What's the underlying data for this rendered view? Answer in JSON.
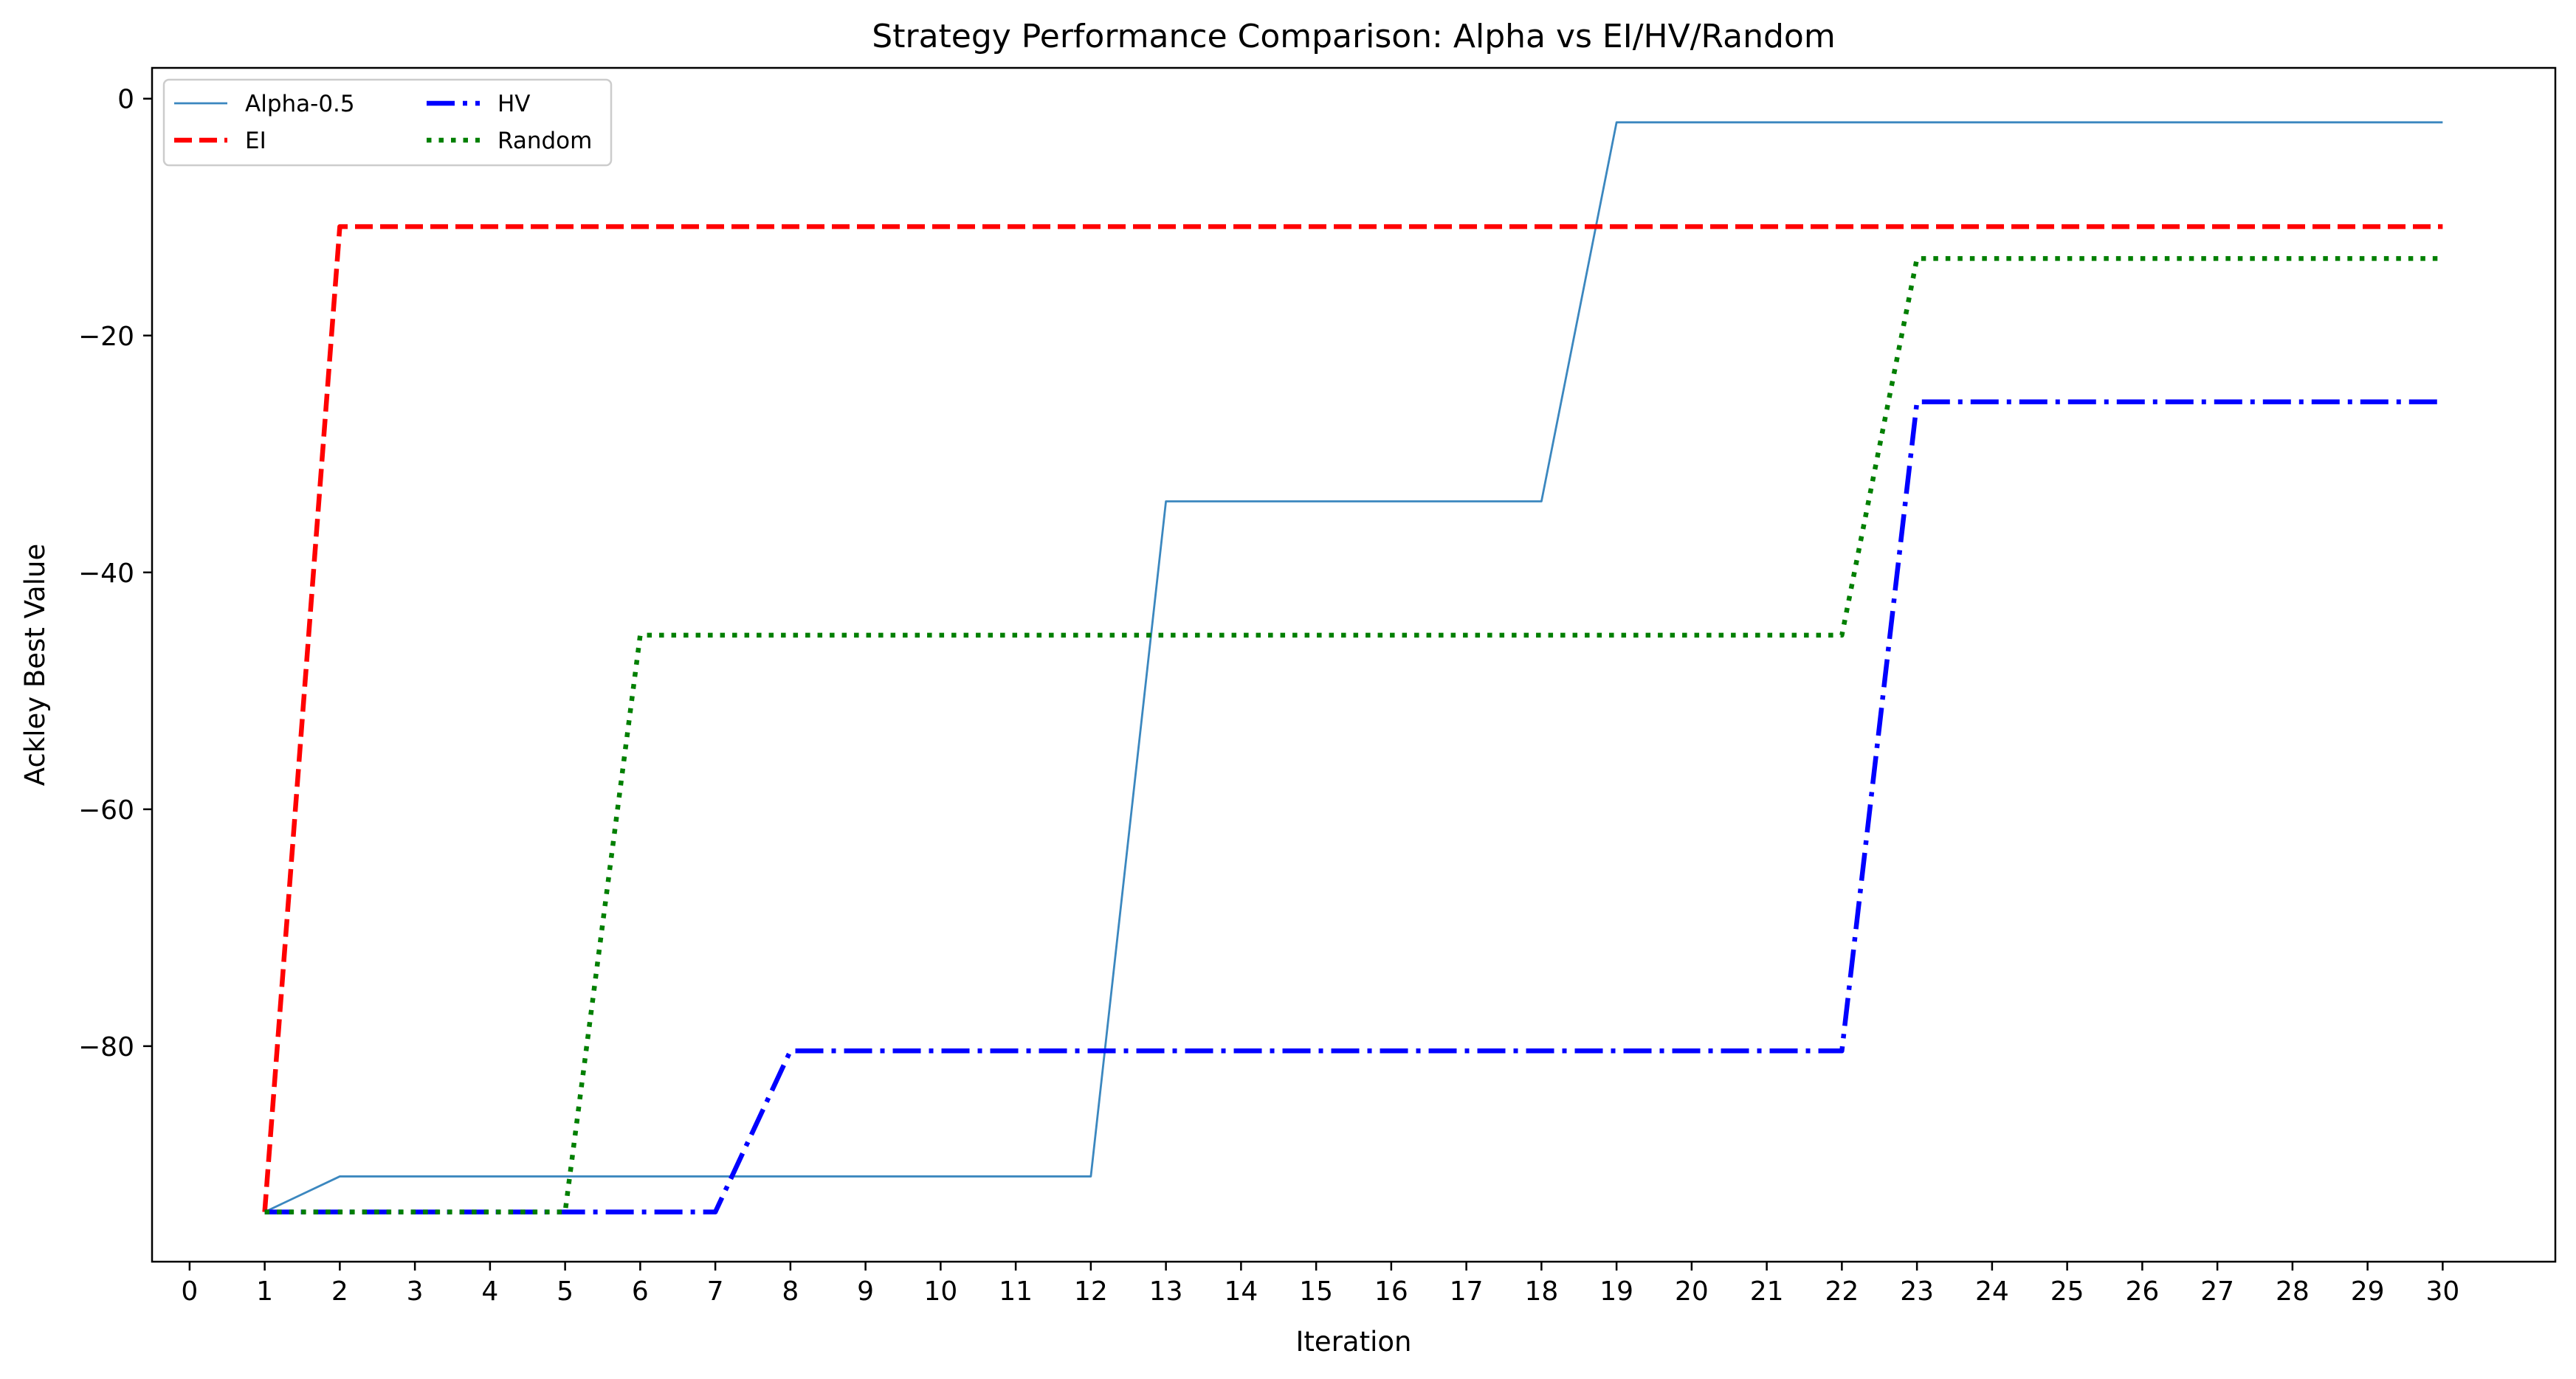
{
  "chart_data": {
    "type": "line",
    "title": "Strategy Performance Comparison: Alpha vs EI/HV/Random",
    "xlabel": "Iteration",
    "ylabel": "Ackley Best Value",
    "xlim": [
      -0.5,
      31.5
    ],
    "ylim": [
      -98.2,
      2.6
    ],
    "xticks": [
      0,
      1,
      2,
      3,
      4,
      5,
      6,
      7,
      8,
      9,
      10,
      11,
      12,
      13,
      14,
      15,
      16,
      17,
      18,
      19,
      20,
      21,
      22,
      23,
      24,
      25,
      26,
      27,
      28,
      29,
      30
    ],
    "yticks": [
      0,
      -20,
      -40,
      -60,
      -80
    ],
    "ytick_labels": [
      "0",
      "−20",
      "−40",
      "−60",
      "−80"
    ],
    "grid": false,
    "legend": {
      "placement": "upper-left",
      "columns": 2
    },
    "x": [
      1,
      2,
      3,
      4,
      5,
      6,
      7,
      8,
      9,
      10,
      11,
      12,
      13,
      14,
      15,
      16,
      17,
      18,
      19,
      20,
      21,
      22,
      23,
      24,
      25,
      26,
      27,
      28,
      29,
      30
    ],
    "series": [
      {
        "name": "Alpha-0.5",
        "color": "#3b87bf",
        "style": "solid",
        "values": [
          -94.0,
          -91.0,
          -91.0,
          -91.0,
          -91.0,
          -91.0,
          -91.0,
          -91.0,
          -91.0,
          -91.0,
          -91.0,
          -91.0,
          -34.0,
          -34.0,
          -34.0,
          -34.0,
          -34.0,
          -34.0,
          -2.0,
          -2.0,
          -2.0,
          -2.0,
          -2.0,
          -2.0,
          -2.0,
          -2.0,
          -2.0,
          -2.0,
          -2.0,
          -2.0
        ]
      },
      {
        "name": "EI",
        "color": "#ff0000",
        "style": "dashed",
        "values": [
          -94.0,
          -10.8,
          -10.8,
          -10.8,
          -10.8,
          -10.8,
          -10.8,
          -10.8,
          -10.8,
          -10.8,
          -10.8,
          -10.8,
          -10.8,
          -10.8,
          -10.8,
          -10.8,
          -10.8,
          -10.8,
          -10.8,
          -10.8,
          -10.8,
          -10.8,
          -10.8,
          -10.8,
          -10.8,
          -10.8,
          -10.8,
          -10.8,
          -10.8,
          -10.8
        ]
      },
      {
        "name": "HV",
        "color": "#0000ff",
        "style": "dashdot",
        "values": [
          -94.0,
          -94.0,
          -94.0,
          -94.0,
          -94.0,
          -94.0,
          -94.0,
          -80.4,
          -80.4,
          -80.4,
          -80.4,
          -80.4,
          -80.4,
          -80.4,
          -80.4,
          -80.4,
          -80.4,
          -80.4,
          -80.4,
          -80.4,
          -80.4,
          -80.4,
          -25.6,
          -25.6,
          -25.6,
          -25.6,
          -25.6,
          -25.6,
          -25.6,
          -25.6
        ]
      },
      {
        "name": "Random",
        "color": "#007f00",
        "style": "dotted",
        "values": [
          -94.0,
          -94.0,
          -94.0,
          -94.0,
          -94.0,
          -45.3,
          -45.3,
          -45.3,
          -45.3,
          -45.3,
          -45.3,
          -45.3,
          -45.3,
          -45.3,
          -45.3,
          -45.3,
          -45.3,
          -45.3,
          -45.3,
          -45.3,
          -45.3,
          -45.3,
          -13.5,
          -13.5,
          -13.5,
          -13.5,
          -13.5,
          -13.5,
          -13.5,
          -13.5
        ]
      }
    ]
  }
}
